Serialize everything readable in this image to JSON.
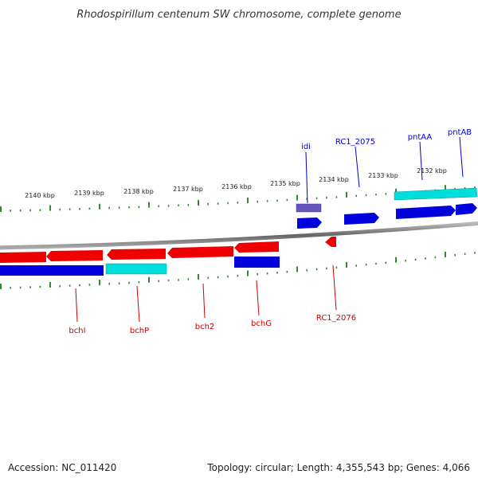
{
  "title": "Rhodospirillum centenum SW chromosome, complete genome",
  "colors": {
    "forward_gene": "#0000dd",
    "reverse_gene": "#ee0000",
    "rna_gene": "#00dddd",
    "other_gene": "#6655bb",
    "tick": "#2e8b2e",
    "backbone": "#888888",
    "forward_label": "#0000cc",
    "reverse_label": "#cc0000"
  },
  "ticks": [
    "2140 kbp",
    "2139 kbp",
    "2138 kbp",
    "2137 kbp",
    "2136 kbp",
    "2135 kbp",
    "2134 kbp",
    "2133 kbp",
    "2132 kbp"
  ],
  "labels_forward": [
    "idi",
    "RC1_2075",
    "pntAA",
    "pntAB"
  ],
  "labels_reverse": [
    "bchI",
    "bchP",
    "bch2",
    "bchG",
    "RC1_2076"
  ],
  "footer": {
    "accession": "Accession: NC_011420",
    "stats": "Topology: circular; Length: 4,355,543 bp; Genes: 4,066"
  }
}
